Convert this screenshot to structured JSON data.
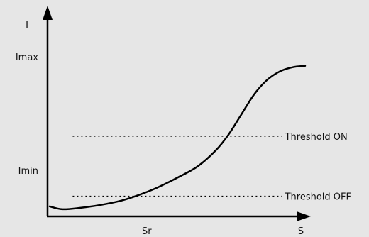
{
  "chart_data": {
    "type": "line",
    "title": "",
    "xlabel": "S",
    "ylabel": "I",
    "x_tick_labels": [
      {
        "label": "Sr",
        "x": 0.38
      }
    ],
    "y_tick_labels": [
      {
        "label": "Imax",
        "y": 1.0
      },
      {
        "label": "Imin",
        "y": 0.0
      }
    ],
    "xlim": [
      0,
      1
    ],
    "ylim": [
      -0.05,
      1.35
    ],
    "grid": false,
    "legend": "none",
    "series": [
      {
        "x": [
          0.0,
          0.05,
          0.12,
          0.2,
          0.28,
          0.35,
          0.42,
          0.5,
          0.58,
          0.65,
          0.7,
          0.75,
          0.8,
          0.85,
          0.9,
          0.95,
          1.0
        ],
        "y": [
          0.02,
          0.0,
          0.01,
          0.03,
          0.06,
          0.1,
          0.15,
          0.22,
          0.3,
          0.41,
          0.52,
          0.66,
          0.8,
          0.9,
          0.96,
          0.99,
          1.0
        ]
      }
    ],
    "thresholds": [
      {
        "label": "Threshold ON",
        "y": 0.51,
        "x_start": 0.09,
        "x_end": 0.91
      },
      {
        "label": "Threshold OFF",
        "y": 0.09,
        "x_start": 0.09,
        "x_end": 0.91
      }
    ],
    "colors": {
      "line": "#000000",
      "background": "#e6e6e6"
    }
  }
}
